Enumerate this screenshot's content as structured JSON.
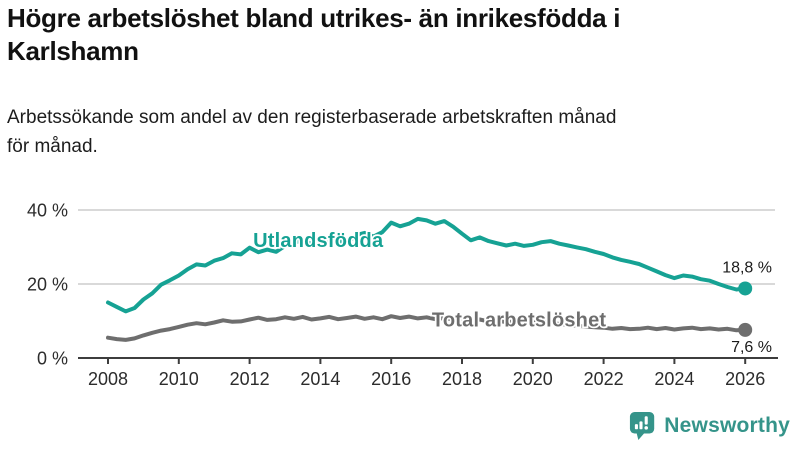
{
  "header": {
    "title": "Högre arbetslöshet bland utrikes- än inrikesfödda i Karlshamn",
    "subtitle": "Arbetssökande som andel av den registerbaserade arbetskraften månad för månad."
  },
  "footer": {
    "brand": "Newsworthy"
  },
  "colors": {
    "foreign_series": "#16a294",
    "total_series": "#6e6e6e",
    "grid": "#d9d9d9",
    "axis": "#3d3d3d",
    "tick_text": "#2c2c2c",
    "end_label_text": "#1a1a1a",
    "brand": "#35948a"
  },
  "chart_data": {
    "type": "line",
    "title": "Högre arbetslöshet bland utrikes- än inrikesfödda i Karlshamn",
    "subtitle": "Arbetssökande som andel av den registerbaserade arbetskraften månad för månad.",
    "ylabel": "",
    "xlabel": "",
    "grid": true,
    "legend_position": "inline",
    "ylim": [
      0,
      42
    ],
    "xlim": [
      2007.6,
      2026.8
    ],
    "yticks": [
      {
        "value": 0,
        "label": "0 %"
      },
      {
        "value": 20,
        "label": "20 %"
      },
      {
        "value": 40,
        "label": "40 %"
      }
    ],
    "x_ticks": [
      2008,
      2010,
      2012,
      2014,
      2016,
      2018,
      2020,
      2022,
      2024,
      2026
    ],
    "x": [
      2008.0,
      2008.25,
      2008.5,
      2008.75,
      2009.0,
      2009.25,
      2009.5,
      2009.75,
      2010.0,
      2010.25,
      2010.5,
      2010.75,
      2011.0,
      2011.25,
      2011.5,
      2011.75,
      2012.0,
      2012.25,
      2012.5,
      2012.75,
      2013.0,
      2013.25,
      2013.5,
      2013.75,
      2014.0,
      2014.25,
      2014.5,
      2014.75,
      2015.0,
      2015.25,
      2015.5,
      2015.75,
      2016.0,
      2016.25,
      2016.5,
      2016.75,
      2017.0,
      2017.25,
      2017.5,
      2017.75,
      2018.0,
      2018.25,
      2018.5,
      2018.75,
      2019.0,
      2019.25,
      2019.5,
      2019.75,
      2020.0,
      2020.25,
      2020.5,
      2020.75,
      2021.0,
      2021.25,
      2021.5,
      2021.75,
      2022.0,
      2022.25,
      2022.5,
      2022.75,
      2023.0,
      2023.25,
      2023.5,
      2023.75,
      2024.0,
      2024.25,
      2024.5,
      2024.75,
      2025.0,
      2025.25,
      2025.5,
      2025.75,
      2026.0
    ],
    "series": [
      {
        "name": "Utlandsfödda",
        "color": "#16a294",
        "end_label": "18,8 %",
        "end_value": 18.8,
        "label_at": {
          "x": 2012.1,
          "y": 30.0
        },
        "values": [
          15.0,
          13.8,
          12.6,
          13.5,
          15.8,
          17.5,
          19.8,
          21.0,
          22.3,
          24.0,
          25.3,
          25.0,
          26.3,
          27.0,
          28.3,
          28.0,
          29.8,
          28.6,
          29.3,
          28.7,
          30.3,
          31.0,
          32.0,
          30.8,
          30.4,
          31.3,
          31.8,
          31.0,
          33.2,
          33.8,
          32.8,
          34.0,
          36.6,
          35.6,
          36.3,
          37.6,
          37.2,
          36.3,
          37.0,
          35.5,
          33.6,
          31.8,
          32.6,
          31.6,
          31.0,
          30.4,
          30.9,
          30.3,
          30.6,
          31.3,
          31.6,
          30.9,
          30.4,
          29.9,
          29.4,
          28.7,
          28.1,
          27.2,
          26.5,
          26.0,
          25.4,
          24.4,
          23.4,
          22.4,
          21.6,
          22.3,
          22.0,
          21.3,
          20.9,
          20.0,
          19.2,
          18.5,
          18.8
        ]
      },
      {
        "name": "Total arbetslöshet",
        "color": "#6e6e6e",
        "end_label": "7,6 %",
        "end_value": 7.6,
        "label_at": {
          "x": 2017.15,
          "y": 8.5
        },
        "values": [
          5.5,
          5.1,
          4.9,
          5.3,
          6.1,
          6.8,
          7.4,
          7.8,
          8.4,
          9.0,
          9.4,
          9.1,
          9.6,
          10.2,
          9.8,
          9.9,
          10.4,
          10.9,
          10.3,
          10.5,
          11.0,
          10.6,
          11.1,
          10.4,
          10.7,
          11.1,
          10.5,
          10.8,
          11.2,
          10.6,
          11.0,
          10.5,
          11.3,
          10.8,
          11.2,
          10.7,
          11.0,
          10.5,
          10.8,
          10.4,
          10.6,
          10.1,
          10.4,
          9.9,
          10.1,
          9.7,
          9.9,
          9.5,
          9.6,
          9.9,
          9.6,
          9.2,
          9.0,
          8.7,
          8.5,
          8.3,
          8.2,
          7.9,
          8.1,
          7.8,
          7.9,
          8.2,
          7.8,
          8.1,
          7.7,
          8.0,
          8.2,
          7.8,
          8.0,
          7.7,
          7.9,
          7.5,
          7.6
        ]
      }
    ]
  }
}
